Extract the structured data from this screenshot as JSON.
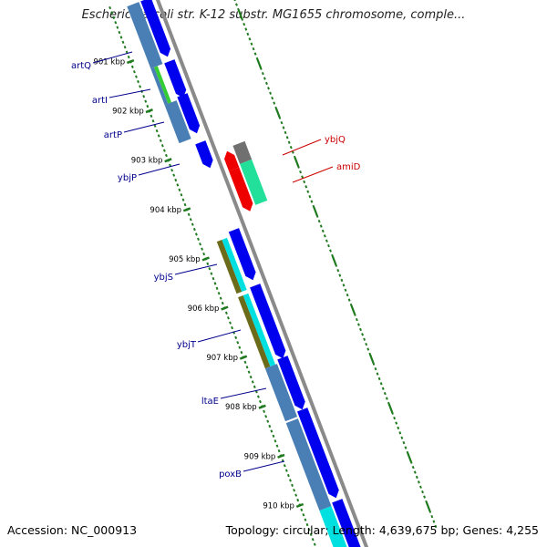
{
  "title": "Escherichia coli str. K-12 substr. MG1655 chromosome, comple...",
  "accession": "Accession: NC_000913",
  "topology": "Topology: circular; Length: 4,639,675 bp; Genes: 4,255",
  "colors": {
    "backbone": "#8a8a8a",
    "tick": "#1f7a1f",
    "left_label": "#00008b",
    "right_label": "#cc0000",
    "cds_blue": "#0000ee",
    "steel": "#4a7fb5",
    "olive": "#6b6b1a",
    "cyan": "#00e0e0",
    "green": "#33cc33",
    "red": "#ee0000",
    "mint": "#22e09a",
    "gray": "#707070"
  },
  "kbp_ticks": [
    {
      "label": "901 kbp",
      "kbp": 901
    },
    {
      "label": "902 kbp",
      "kbp": 902
    },
    {
      "label": "903 kbp",
      "kbp": 903
    },
    {
      "label": "904 kbp",
      "kbp": 904
    },
    {
      "label": "905 kbp",
      "kbp": 905
    },
    {
      "label": "906 kbp",
      "kbp": 906
    },
    {
      "label": "907 kbp",
      "kbp": 907
    },
    {
      "label": "908 kbp",
      "kbp": 908
    },
    {
      "label": "909 kbp",
      "kbp": 909
    },
    {
      "label": "910 kbp",
      "kbp": 910
    }
  ],
  "genes_left": [
    {
      "label": "artQ"
    },
    {
      "label": "artI"
    },
    {
      "label": "artP"
    },
    {
      "label": "ybjP"
    },
    {
      "label": "ybjS"
    },
    {
      "label": "ybjT"
    },
    {
      "label": "ltaE"
    },
    {
      "label": "poxB"
    }
  ],
  "genes_right": [
    {
      "label": "ybjQ"
    },
    {
      "label": "amiD"
    }
  ]
}
